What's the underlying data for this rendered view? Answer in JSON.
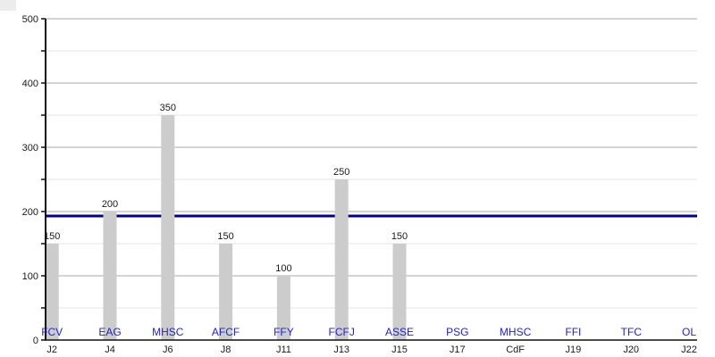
{
  "chart_data": {
    "type": "bar",
    "title": "",
    "xlabel": "",
    "ylabel": "",
    "x_labels": [
      "J2",
      "J4",
      "J6",
      "J8",
      "J11",
      "J13",
      "J15",
      "J17",
      "CdF",
      "J19",
      "J20",
      "J22"
    ],
    "team_labels": [
      "FCV",
      "EAG",
      "MHSC",
      "AFCF",
      "FFY",
      "FCFJ",
      "ASSE",
      "PSG",
      "MHSC",
      "FFI",
      "TFC",
      "OL"
    ],
    "values": [
      150,
      200,
      350,
      150,
      100,
      250,
      150,
      null,
      null,
      null,
      null,
      null
    ],
    "value_labels": [
      "150",
      "200",
      "350",
      "150",
      "100",
      "250",
      "150",
      "",
      "",
      "",
      "",
      ""
    ],
    "average_line": 193,
    "ylim": [
      0,
      500
    ],
    "y_major_step": 100,
    "y_minor_step": 50,
    "y_tick_labels": [
      "0",
      "100",
      "200",
      "300",
      "400",
      "500"
    ],
    "grid": true,
    "legend": "none",
    "colors": {
      "bar": "#cccccc",
      "average_line": "#00008b",
      "team_label": "#2222cc",
      "axis": "#111111",
      "text": "#1a1a1a",
      "grid_major": "#aaaaaa",
      "grid_minor": "#e3e3e3",
      "background": "#ffffff"
    }
  }
}
